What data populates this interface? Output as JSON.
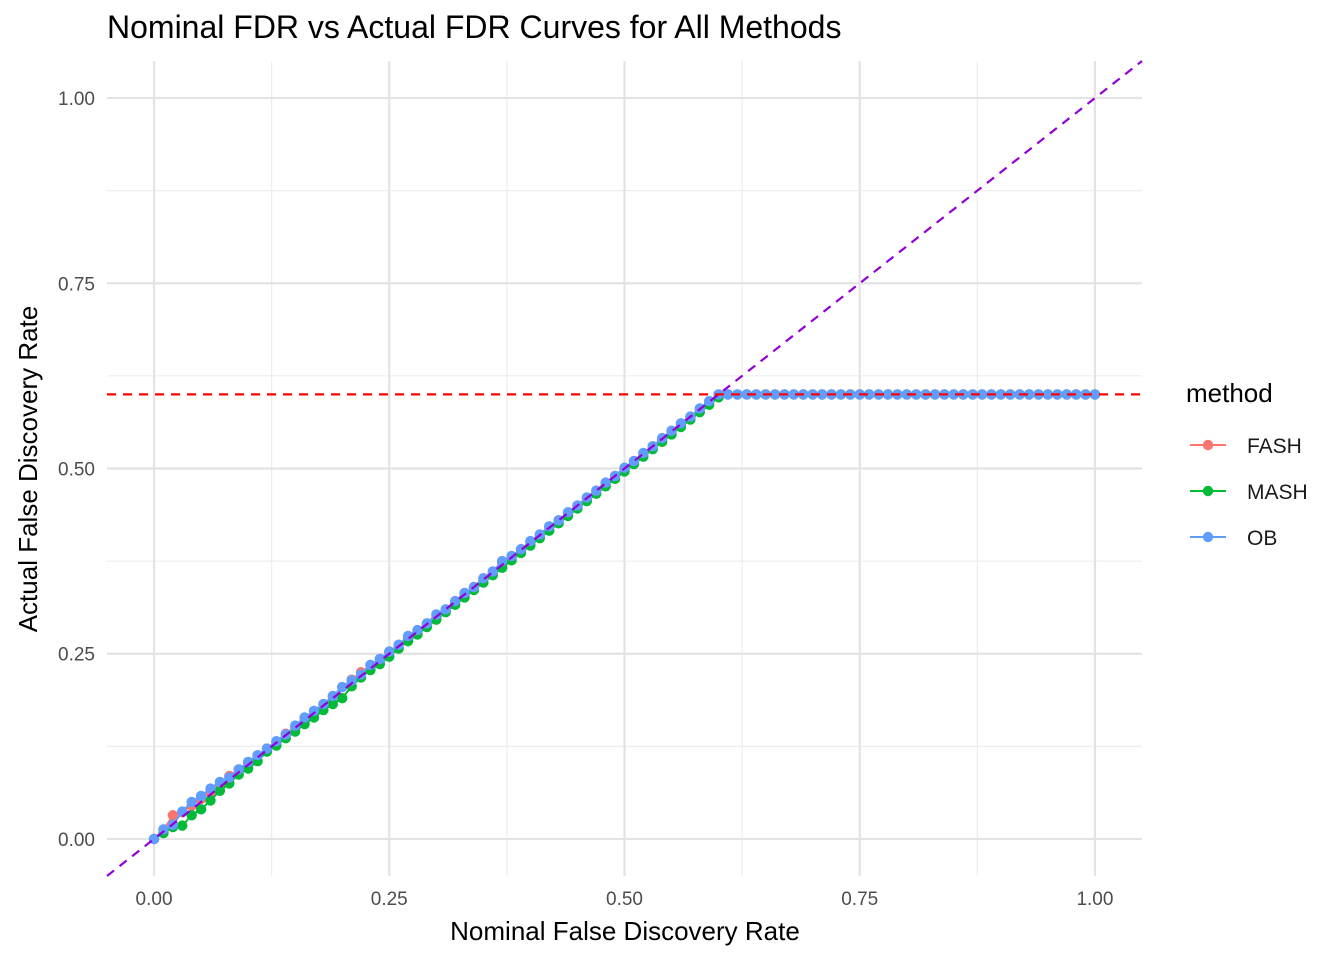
{
  "chart_data": {
    "type": "scatter",
    "title": "Nominal FDR vs Actual FDR Curves for All Methods",
    "xlabel": "Nominal False Discovery Rate",
    "ylabel": "Actual False Discovery Rate",
    "xlim": [
      -0.05,
      1.05
    ],
    "ylim": [
      -0.05,
      1.05
    ],
    "x_ticks": [
      "0.00",
      "0.25",
      "0.50",
      "0.75",
      "1.00"
    ],
    "y_ticks": [
      "0.00",
      "0.25",
      "0.50",
      "0.75",
      "1.00"
    ],
    "grid": true,
    "legend": {
      "title": "method",
      "position": "right"
    },
    "reference_lines": [
      {
        "kind": "identity",
        "slope": 1,
        "intercept": 0,
        "color": "#9400D3",
        "style": "dashed"
      },
      {
        "kind": "horizontal",
        "y": 0.6,
        "color": "#FF0000",
        "style": "dashed"
      }
    ],
    "x": [
      0.0,
      0.01,
      0.02,
      0.03,
      0.04,
      0.05,
      0.06,
      0.07,
      0.08,
      0.09,
      0.1,
      0.11,
      0.12,
      0.13,
      0.14,
      0.15,
      0.16,
      0.17,
      0.18,
      0.19,
      0.2,
      0.21,
      0.22,
      0.23,
      0.24,
      0.25,
      0.26,
      0.27,
      0.28,
      0.29,
      0.3,
      0.31,
      0.32,
      0.33,
      0.34,
      0.35,
      0.36,
      0.37,
      0.38,
      0.39,
      0.4,
      0.41,
      0.42,
      0.43,
      0.44,
      0.45,
      0.46,
      0.47,
      0.48,
      0.49,
      0.5,
      0.51,
      0.52,
      0.53,
      0.54,
      0.55,
      0.56,
      0.57,
      0.58,
      0.59,
      0.6,
      0.61,
      0.62,
      0.63,
      0.64,
      0.65,
      0.66,
      0.67,
      0.68,
      0.69,
      0.7,
      0.71,
      0.72,
      0.73,
      0.74,
      0.75,
      0.76,
      0.77,
      0.78,
      0.79,
      0.8,
      0.81,
      0.82,
      0.83,
      0.84,
      0.85,
      0.86,
      0.87,
      0.88,
      0.89,
      0.9,
      0.91,
      0.92,
      0.93,
      0.94,
      0.95,
      0.96,
      0.97,
      0.98,
      0.99,
      1.0
    ],
    "series": [
      {
        "name": "FASH",
        "color": "#F8766D",
        "values": [
          0.0,
          0.012,
          0.032,
          0.036,
          0.045,
          0.054,
          0.063,
          0.073,
          0.085,
          0.093,
          0.102,
          0.112,
          0.122,
          0.131,
          0.142,
          0.151,
          0.162,
          0.172,
          0.182,
          0.192,
          0.205,
          0.215,
          0.225,
          0.234,
          0.243,
          0.252,
          0.262,
          0.271,
          0.281,
          0.29,
          0.298,
          0.308,
          0.319,
          0.33,
          0.34,
          0.35,
          0.358,
          0.372,
          0.381,
          0.391,
          0.4,
          0.41,
          0.42,
          0.43,
          0.44,
          0.45,
          0.46,
          0.47,
          0.48,
          0.49,
          0.5,
          0.51,
          0.52,
          0.53,
          0.54,
          0.55,
          0.56,
          0.57,
          0.58,
          0.59,
          0.6,
          0.6,
          0.6,
          0.6,
          0.6,
          0.6,
          0.6,
          0.6,
          0.6,
          0.6,
          0.6,
          0.6,
          0.6,
          0.6,
          0.6,
          0.6,
          0.6,
          0.6,
          0.6,
          0.6,
          0.6,
          0.6,
          0.6,
          0.6,
          0.6,
          0.6,
          0.6,
          0.6,
          0.6,
          0.6,
          0.6,
          0.6,
          0.6,
          0.6,
          0.6,
          0.6,
          0.6,
          0.6,
          0.6,
          0.6,
          0.6
        ]
      },
      {
        "name": "MASH",
        "color": "#00BA38",
        "values": [
          0.0,
          0.008,
          0.016,
          0.018,
          0.032,
          0.04,
          0.052,
          0.065,
          0.075,
          0.087,
          0.095,
          0.105,
          0.118,
          0.126,
          0.136,
          0.145,
          0.155,
          0.164,
          0.174,
          0.182,
          0.19,
          0.206,
          0.218,
          0.228,
          0.236,
          0.246,
          0.257,
          0.267,
          0.276,
          0.286,
          0.296,
          0.306,
          0.316,
          0.326,
          0.336,
          0.346,
          0.356,
          0.366,
          0.376,
          0.386,
          0.396,
          0.406,
          0.416,
          0.426,
          0.436,
          0.446,
          0.456,
          0.466,
          0.476,
          0.486,
          0.496,
          0.506,
          0.516,
          0.526,
          0.536,
          0.546,
          0.556,
          0.566,
          0.576,
          0.586,
          0.596,
          0.6,
          0.6,
          0.6,
          0.6,
          0.6,
          0.6,
          0.6,
          0.6,
          0.6,
          0.6,
          0.6,
          0.6,
          0.6,
          0.6,
          0.6,
          0.6,
          0.6,
          0.6,
          0.6,
          0.6,
          0.6,
          0.6,
          0.6,
          0.6,
          0.6,
          0.6,
          0.6,
          0.6,
          0.6,
          0.6,
          0.6,
          0.6,
          0.6,
          0.6,
          0.6,
          0.6,
          0.6,
          0.6,
          0.6,
          0.6
        ]
      },
      {
        "name": "OB",
        "color": "#619CFF",
        "values": [
          0.0,
          0.013,
          0.019,
          0.037,
          0.05,
          0.058,
          0.068,
          0.077,
          0.083,
          0.094,
          0.104,
          0.113,
          0.122,
          0.132,
          0.141,
          0.153,
          0.164,
          0.173,
          0.182,
          0.193,
          0.205,
          0.214,
          0.222,
          0.235,
          0.243,
          0.253,
          0.262,
          0.274,
          0.282,
          0.291,
          0.303,
          0.31,
          0.321,
          0.332,
          0.34,
          0.352,
          0.361,
          0.375,
          0.382,
          0.391,
          0.402,
          0.411,
          0.422,
          0.43,
          0.441,
          0.45,
          0.461,
          0.47,
          0.481,
          0.49,
          0.501,
          0.51,
          0.521,
          0.53,
          0.541,
          0.551,
          0.561,
          0.57,
          0.581,
          0.591,
          0.6,
          0.6,
          0.6,
          0.6,
          0.6,
          0.6,
          0.6,
          0.6,
          0.6,
          0.6,
          0.6,
          0.6,
          0.6,
          0.6,
          0.6,
          0.6,
          0.6,
          0.6,
          0.6,
          0.6,
          0.6,
          0.6,
          0.6,
          0.6,
          0.6,
          0.6,
          0.6,
          0.6,
          0.6,
          0.6,
          0.6,
          0.6,
          0.6,
          0.6,
          0.6,
          0.6,
          0.6,
          0.6,
          0.6,
          0.6,
          0.6
        ]
      }
    ]
  }
}
